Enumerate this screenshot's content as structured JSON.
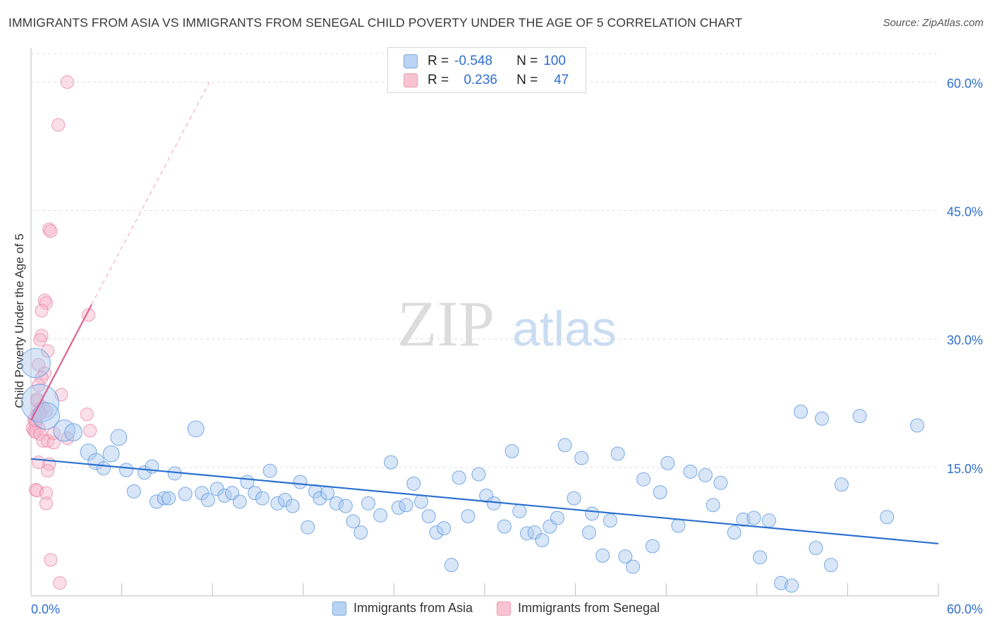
{
  "title": "IMMIGRANTS FROM ASIA VS IMMIGRANTS FROM SENEGAL CHILD POVERTY UNDER THE AGE OF 5 CORRELATION CHART",
  "source": "Source: ZipAtlas.com",
  "watermark": {
    "zip": "ZIP",
    "atlas": "atlas"
  },
  "colors": {
    "asia": "#5b97e0",
    "asia_fill": "#a9c8f0",
    "asia_line": "#2a6fd0",
    "senegal": "#e87ea0",
    "senegal_fill": "#f6b9cc",
    "senegal_line": "#e0628c",
    "tick_label": "#2f6fd0"
  },
  "legend_box": {
    "rows": [
      {
        "series": "asia",
        "r_label": "R =",
        "r_value": "-0.548",
        "n_label": "N =",
        "n_value": "100"
      },
      {
        "series": "senegal",
        "r_label": "R =",
        "r_value": "0.236",
        "n_label": "N =",
        "n_value": "47"
      }
    ]
  },
  "bottom_legend": [
    {
      "label": "Immigrants from Asia",
      "series": "asia"
    },
    {
      "label": "Immigrants from Senegal",
      "series": "senegal"
    }
  ],
  "chart_data": {
    "type": "scatter",
    "title": "IMMIGRANTS FROM ASIA VS IMMIGRANTS FROM SENEGAL CHILD POVERTY UNDER THE AGE OF 5 CORRELATION CHART",
    "xlabel": "",
    "ylabel": "Child Poverty Under the Age of 5",
    "xlim": [
      0,
      60
    ],
    "ylim": [
      0,
      63
    ],
    "x_tick_labels": [
      "0.0%",
      "60.0%"
    ],
    "y_ticks": [
      15,
      30,
      45,
      60
    ],
    "y_tick_labels": [
      "15.0%",
      "30.0%",
      "45.0%",
      "60.0%"
    ],
    "grid": true,
    "legend_position": "bottom",
    "series": [
      {
        "name": "Immigrants from Asia",
        "points": [
          [
            0.3,
            27.2,
            2.2
          ],
          [
            0.6,
            22.5,
            2.8
          ],
          [
            1.0,
            21.0,
            2.0
          ],
          [
            2.2,
            19.3,
            1.6
          ],
          [
            2.8,
            19.1,
            1.3
          ],
          [
            3.8,
            16.8,
            1.2
          ],
          [
            4.3,
            15.7,
            1.2
          ],
          [
            4.8,
            14.9,
            1.0
          ],
          [
            5.3,
            16.6,
            1.2
          ],
          [
            5.8,
            18.5,
            1.2
          ],
          [
            6.3,
            14.7,
            1.0
          ],
          [
            6.8,
            12.2,
            1.0
          ],
          [
            7.5,
            14.4,
            1.0
          ],
          [
            8.0,
            15.1,
            1.0
          ],
          [
            8.3,
            11.0,
            1.0
          ],
          [
            8.8,
            11.4,
            1.0
          ],
          [
            9.1,
            11.4,
            1.0
          ],
          [
            9.5,
            14.3,
            1.0
          ],
          [
            10.2,
            11.9,
            1.0
          ],
          [
            10.9,
            19.5,
            1.2
          ],
          [
            11.3,
            12.0,
            1.0
          ],
          [
            11.7,
            11.2,
            1.0
          ],
          [
            12.3,
            12.5,
            1.0
          ],
          [
            12.8,
            11.7,
            1.0
          ],
          [
            13.3,
            12.0,
            1.0
          ],
          [
            13.8,
            11.0,
            1.0
          ],
          [
            14.3,
            13.3,
            1.0
          ],
          [
            14.8,
            12.0,
            1.0
          ],
          [
            15.3,
            11.4,
            1.0
          ],
          [
            15.8,
            14.6,
            1.0
          ],
          [
            16.3,
            10.8,
            1.0
          ],
          [
            16.8,
            11.2,
            1.0
          ],
          [
            17.3,
            10.5,
            1.0
          ],
          [
            17.8,
            13.3,
            1.0
          ],
          [
            18.3,
            8.0,
            1.0
          ],
          [
            18.8,
            12.2,
            1.0
          ],
          [
            19.1,
            11.4,
            1.0
          ],
          [
            19.6,
            12.0,
            1.0
          ],
          [
            20.2,
            10.8,
            1.0
          ],
          [
            20.8,
            10.5,
            1.0
          ],
          [
            21.3,
            8.7,
            1.0
          ],
          [
            21.8,
            7.4,
            1.0
          ],
          [
            22.3,
            10.8,
            1.0
          ],
          [
            23.1,
            9.4,
            1.0
          ],
          [
            23.8,
            15.6,
            1.0
          ],
          [
            24.3,
            10.3,
            1.0
          ],
          [
            24.8,
            10.6,
            1.0
          ],
          [
            25.3,
            13.1,
            1.0
          ],
          [
            25.8,
            11.0,
            1.0
          ],
          [
            26.3,
            9.3,
            1.0
          ],
          [
            26.8,
            7.4,
            1.0
          ],
          [
            27.3,
            7.9,
            1.0
          ],
          [
            27.8,
            3.6,
            1.0
          ],
          [
            28.3,
            13.8,
            1.0
          ],
          [
            28.9,
            9.3,
            1.0
          ],
          [
            29.6,
            14.2,
            1.0
          ],
          [
            30.1,
            11.7,
            1.0
          ],
          [
            30.6,
            10.8,
            1.0
          ],
          [
            31.3,
            8.1,
            1.0
          ],
          [
            31.8,
            16.9,
            1.0
          ],
          [
            32.3,
            9.9,
            1.0
          ],
          [
            32.8,
            7.3,
            1.0
          ],
          [
            33.3,
            7.4,
            1.0
          ],
          [
            33.8,
            6.5,
            1.0
          ],
          [
            34.3,
            8.1,
            1.0
          ],
          [
            34.8,
            9.1,
            1.0
          ],
          [
            35.3,
            17.6,
            1.0
          ],
          [
            35.9,
            11.4,
            1.0
          ],
          [
            36.4,
            16.1,
            1.0
          ],
          [
            36.9,
            7.4,
            1.0
          ],
          [
            37.1,
            9.6,
            1.0
          ],
          [
            37.8,
            4.7,
            1.0
          ],
          [
            38.3,
            8.8,
            1.0
          ],
          [
            38.8,
            16.6,
            1.0
          ],
          [
            39.3,
            4.6,
            1.0
          ],
          [
            39.8,
            3.4,
            1.0
          ],
          [
            40.5,
            13.6,
            1.0
          ],
          [
            41.1,
            5.8,
            1.0
          ],
          [
            41.6,
            12.1,
            1.0
          ],
          [
            42.1,
            15.5,
            1.0
          ],
          [
            42.8,
            8.2,
            1.0
          ],
          [
            43.6,
            14.5,
            1.0
          ],
          [
            44.6,
            14.1,
            1.0
          ],
          [
            45.1,
            10.6,
            1.0
          ],
          [
            45.6,
            13.2,
            1.0
          ],
          [
            46.5,
            7.4,
            1.0
          ],
          [
            47.1,
            8.9,
            1.0
          ],
          [
            47.8,
            9.1,
            1.0
          ],
          [
            48.2,
            4.5,
            1.0
          ],
          [
            48.8,
            8.8,
            1.0
          ],
          [
            49.6,
            1.5,
            1.0
          ],
          [
            50.3,
            1.2,
            1.0
          ],
          [
            50.9,
            21.5,
            1.0
          ],
          [
            51.9,
            5.6,
            1.0
          ],
          [
            52.9,
            3.6,
            1.0
          ],
          [
            53.6,
            13.0,
            1.0
          ],
          [
            56.6,
            9.2,
            1.0
          ],
          [
            58.6,
            19.9,
            1.0
          ],
          [
            54.8,
            21.0,
            1.0
          ],
          [
            52.3,
            20.7,
            1.0
          ]
        ],
        "trend": {
          "x": [
            0,
            60
          ],
          "y": [
            16.0,
            6.1
          ]
        }
      },
      {
        "name": "Immigrants from Senegal",
        "points": [
          [
            2.4,
            60.0,
            1.0
          ],
          [
            1.8,
            55.0,
            1.0
          ],
          [
            1.2,
            42.8,
            1.0
          ],
          [
            1.3,
            42.6,
            1.0
          ],
          [
            0.9,
            34.5,
            1.0
          ],
          [
            1.0,
            34.2,
            1.0
          ],
          [
            0.7,
            33.3,
            1.0
          ],
          [
            3.8,
            32.8,
            1.0
          ],
          [
            0.7,
            30.4,
            1.0
          ],
          [
            0.6,
            29.9,
            1.0
          ],
          [
            1.1,
            28.6,
            1.0
          ],
          [
            0.5,
            27.0,
            1.0
          ],
          [
            0.9,
            26.0,
            1.0
          ],
          [
            0.7,
            25.5,
            1.0
          ],
          [
            0.5,
            24.6,
            1.0
          ],
          [
            2.0,
            23.5,
            1.0
          ],
          [
            0.4,
            23.0,
            1.0
          ],
          [
            0.8,
            22.0,
            1.0
          ],
          [
            0.5,
            21.8,
            1.0
          ],
          [
            1.0,
            21.6,
            1.0
          ],
          [
            0.4,
            21.1,
            1.0
          ],
          [
            0.2,
            20.6,
            1.0
          ],
          [
            3.7,
            21.2,
            1.0
          ],
          [
            0.3,
            20.1,
            1.0
          ],
          [
            0.5,
            19.6,
            1.0
          ],
          [
            0.1,
            19.6,
            1.0
          ],
          [
            0.2,
            19.3,
            1.0
          ],
          [
            0.3,
            19.1,
            1.0
          ],
          [
            0.6,
            18.9,
            1.0
          ],
          [
            3.9,
            19.3,
            1.0
          ],
          [
            0.8,
            18.1,
            1.0
          ],
          [
            1.1,
            18.1,
            1.0
          ],
          [
            1.5,
            17.9,
            1.0
          ],
          [
            2.4,
            18.4,
            1.0
          ],
          [
            0.5,
            15.6,
            1.0
          ],
          [
            1.2,
            15.4,
            1.0
          ],
          [
            1.1,
            14.6,
            1.0
          ],
          [
            0.3,
            12.4,
            1.0
          ],
          [
            0.4,
            12.3,
            1.0
          ],
          [
            1.0,
            12.0,
            1.0
          ],
          [
            1.0,
            10.8,
            1.0
          ],
          [
            1.3,
            4.2,
            1.0
          ],
          [
            1.9,
            1.5,
            1.0
          ],
          [
            0.3,
            20.5,
            1.0
          ],
          [
            0.6,
            21.3,
            1.0
          ],
          [
            0.4,
            22.8,
            1.0
          ],
          [
            1.5,
            19.0,
            1.0
          ]
        ],
        "trend": {
          "x": [
            0,
            4.0
          ],
          "y": [
            20.5,
            34.0
          ],
          "ext_x": [
            4.0,
            11.8
          ],
          "ext_y": [
            34.0,
            60.0
          ]
        }
      }
    ]
  }
}
